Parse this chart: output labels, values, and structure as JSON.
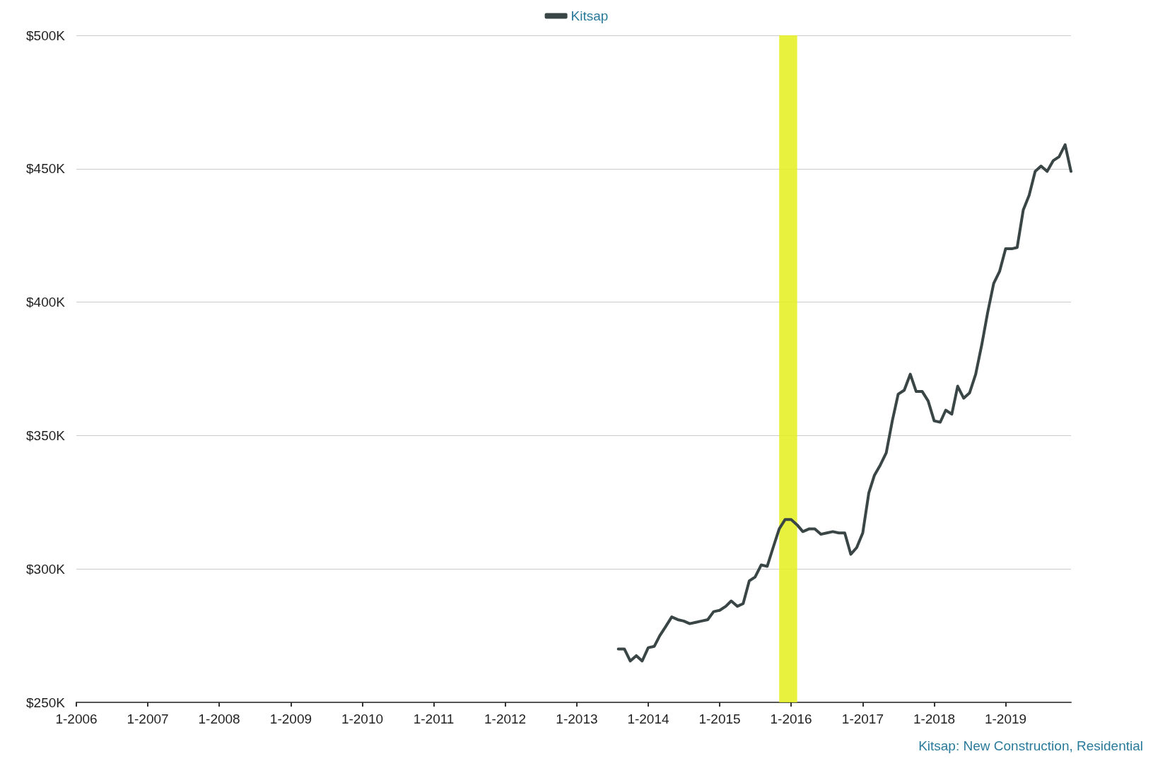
{
  "chart_data": {
    "type": "line",
    "legend": "top",
    "grid": "y",
    "marker": "none",
    "line_style": "solid",
    "annotations": [
      "Kitsap: New Construction, Residential"
    ],
    "xlim": [
      "2006-01",
      "2019-12"
    ],
    "xticks": [
      {
        "value": "2006-01",
        "label": "1-2006"
      },
      {
        "value": "2007-01",
        "label": "1-2007"
      },
      {
        "value": "2008-01",
        "label": "1-2008"
      },
      {
        "value": "2009-01",
        "label": "1-2009"
      },
      {
        "value": "2010-01",
        "label": "1-2010"
      },
      {
        "value": "2011-01",
        "label": "1-2011"
      },
      {
        "value": "2012-01",
        "label": "1-2012"
      },
      {
        "value": "2013-01",
        "label": "1-2013"
      },
      {
        "value": "2014-01",
        "label": "1-2014"
      },
      {
        "value": "2015-01",
        "label": "1-2015"
      },
      {
        "value": "2016-01",
        "label": "1-2016"
      },
      {
        "value": "2017-01",
        "label": "1-2017"
      },
      {
        "value": "2018-01",
        "label": "1-2018"
      },
      {
        "value": "2019-01",
        "label": "1-2019"
      }
    ],
    "ylim": [
      250,
      500
    ],
    "yticks": [
      {
        "value": 250,
        "label": "$250K"
      },
      {
        "value": 300,
        "label": "$300K"
      },
      {
        "value": 350,
        "label": "$350K"
      },
      {
        "value": 400,
        "label": "$400K"
      },
      {
        "value": 450,
        "label": "$450K"
      },
      {
        "value": 500,
        "label": "$500K"
      }
    ],
    "bands": [
      {
        "axis": "x",
        "from": "2015-11",
        "to": "2016-02",
        "color": "#e4f01c"
      }
    ],
    "x": [
      "2013-08",
      "2013-09",
      "2013-10",
      "2013-11",
      "2013-12",
      "2014-01",
      "2014-02",
      "2014-03",
      "2014-04",
      "2014-05",
      "2014-06",
      "2014-07",
      "2014-08",
      "2014-09",
      "2014-10",
      "2014-11",
      "2014-12",
      "2015-01",
      "2015-02",
      "2015-03",
      "2015-04",
      "2015-05",
      "2015-06",
      "2015-07",
      "2015-08",
      "2015-09",
      "2015-10",
      "2015-11",
      "2015-12",
      "2016-01",
      "2016-02",
      "2016-03",
      "2016-04",
      "2016-05",
      "2016-06",
      "2016-07",
      "2016-08",
      "2016-09",
      "2016-10",
      "2016-11",
      "2016-12",
      "2017-01",
      "2017-02",
      "2017-03",
      "2017-04",
      "2017-05",
      "2017-06",
      "2017-07",
      "2017-08",
      "2017-09",
      "2017-10",
      "2017-11",
      "2017-12",
      "2018-01",
      "2018-02",
      "2018-03",
      "2018-04",
      "2018-05",
      "2018-06",
      "2018-07",
      "2018-08",
      "2018-09",
      "2018-10",
      "2018-11",
      "2018-12",
      "2019-01",
      "2019-02",
      "2019-03",
      "2019-04",
      "2019-05",
      "2019-06",
      "2019-07",
      "2019-08",
      "2019-09",
      "2019-10",
      "2019-11",
      "2019-12"
    ],
    "series": [
      {
        "name": "Kitsap",
        "color": "#3a4545",
        "values": [
          270,
          270,
          265.5,
          267.5,
          265.5,
          270.5,
          271,
          275,
          278.5,
          282,
          281,
          280.5,
          279.5,
          280,
          280.5,
          281,
          284,
          284.5,
          286,
          288,
          286,
          287,
          295.5,
          297,
          301.5,
          301,
          308,
          315,
          318.5,
          318.5,
          316.5,
          314,
          315,
          315,
          313,
          313.5,
          314,
          313.5,
          313.5,
          305.5,
          308,
          313.5,
          328.5,
          335,
          339,
          343.5,
          355.5,
          365.5,
          367,
          373,
          366.5,
          366.5,
          363,
          355.5,
          355,
          359.5,
          358,
          368.5,
          364,
          366,
          373,
          384,
          396,
          407,
          411.5,
          420,
          420,
          420.5,
          434.5,
          440,
          449,
          451,
          449,
          453,
          454.5,
          459,
          449
        ]
      }
    ]
  }
}
